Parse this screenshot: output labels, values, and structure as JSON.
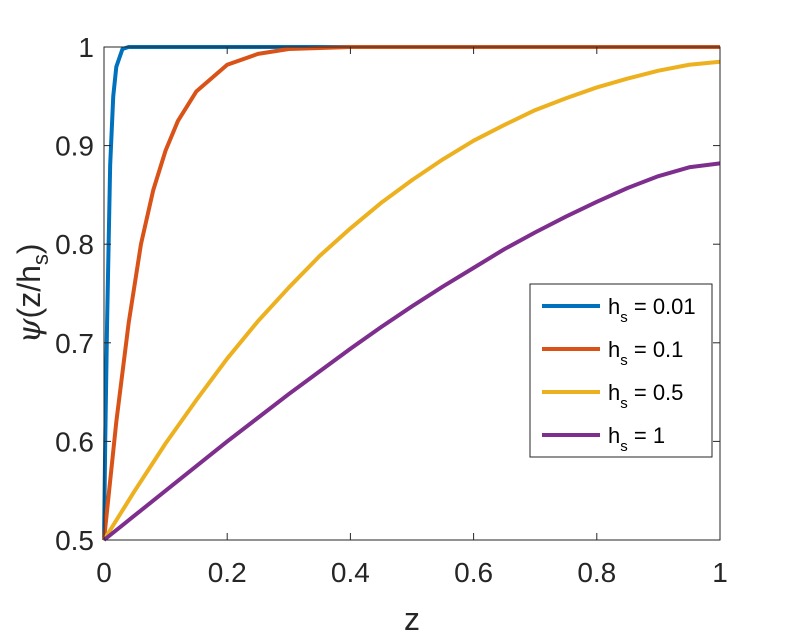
{
  "chart_data": {
    "type": "line",
    "title": "",
    "xlabel": "z",
    "ylabel": "ψ(z/h_s)",
    "ylabel_parts": {
      "prefix": "ψ(z/h",
      "sub": "s",
      "suffix": ")"
    },
    "xlim": [
      0,
      1
    ],
    "ylim": [
      0.5,
      1
    ],
    "xticks": [
      0,
      0.2,
      0.4,
      0.6,
      0.8,
      1
    ],
    "xtick_labels": [
      "0",
      "0.2",
      "0.4",
      "0.6",
      "0.8",
      "1"
    ],
    "yticks": [
      0.5,
      0.6,
      0.7,
      0.8,
      0.9,
      1
    ],
    "ytick_labels": [
      "0.5",
      "0.6",
      "0.7",
      "0.8",
      "0.9",
      "1"
    ],
    "grid": false,
    "legend_position": "right",
    "series": [
      {
        "name": "h_s = 0.01",
        "label": {
          "prefix": "h",
          "sub": "s",
          "suffix": " = 0.01"
        },
        "color": "#0072BD",
        "x": [
          0,
          0.002,
          0.005,
          0.01,
          0.015,
          0.02,
          0.03,
          0.04,
          0.05,
          0.1,
          0.2,
          0.4,
          0.6,
          0.8,
          1
        ],
        "y": [
          0.5,
          0.6,
          0.72,
          0.88,
          0.95,
          0.98,
          0.998,
          1,
          1,
          1,
          1,
          1,
          1,
          1,
          1
        ]
      },
      {
        "name": "h_s = 0.1",
        "label": {
          "prefix": "h",
          "sub": "s",
          "suffix": " = 0.1"
        },
        "color": "#D95319",
        "x": [
          0,
          0.02,
          0.04,
          0.06,
          0.08,
          0.1,
          0.12,
          0.15,
          0.2,
          0.25,
          0.3,
          0.35,
          0.4,
          0.5,
          0.6,
          0.8,
          1
        ],
        "y": [
          0.5,
          0.62,
          0.72,
          0.8,
          0.855,
          0.895,
          0.925,
          0.955,
          0.982,
          0.993,
          0.998,
          0.999,
          1,
          1,
          1,
          1,
          1
        ]
      },
      {
        "name": "h_s = 0.5",
        "label": {
          "prefix": "h",
          "sub": "s",
          "suffix": " = 0.5"
        },
        "color": "#EDB120",
        "x": [
          0,
          0.05,
          0.1,
          0.15,
          0.2,
          0.25,
          0.3,
          0.35,
          0.4,
          0.45,
          0.5,
          0.55,
          0.6,
          0.65,
          0.7,
          0.75,
          0.8,
          0.85,
          0.9,
          0.95,
          1
        ],
        "y": [
          0.5,
          0.55,
          0.598,
          0.642,
          0.684,
          0.722,
          0.756,
          0.788,
          0.816,
          0.842,
          0.865,
          0.886,
          0.905,
          0.921,
          0.936,
          0.948,
          0.959,
          0.968,
          0.976,
          0.982,
          0.985
        ]
      },
      {
        "name": "h_s = 1",
        "label": {
          "prefix": "h",
          "sub": "s",
          "suffix": " = 1"
        },
        "color": "#7E2F8E",
        "x": [
          0,
          0.05,
          0.1,
          0.15,
          0.2,
          0.25,
          0.3,
          0.35,
          0.4,
          0.45,
          0.5,
          0.55,
          0.6,
          0.65,
          0.7,
          0.75,
          0.8,
          0.85,
          0.9,
          0.95,
          1
        ],
        "y": [
          0.5,
          0.525,
          0.55,
          0.575,
          0.6,
          0.624,
          0.648,
          0.671,
          0.694,
          0.716,
          0.737,
          0.757,
          0.776,
          0.795,
          0.812,
          0.828,
          0.843,
          0.857,
          0.869,
          0.878,
          0.882
        ]
      }
    ]
  }
}
